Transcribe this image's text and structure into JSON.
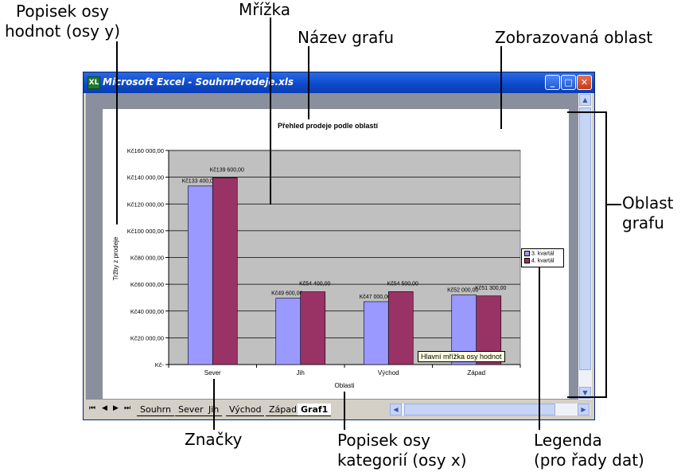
{
  "callouts": {
    "value_axis_label": "Popisek osy\nhodnot (osy y)",
    "gridline": "Mřížka",
    "chart_title": "Název grafu",
    "plot_area": "Zobrazovaná oblast",
    "chart_area": "Oblast\ngrafu",
    "markers": "Značky",
    "category_axis_label": "Popisek osy\nkategorií (osy x)",
    "legend": "Legenda\n(pro řady dat)"
  },
  "window": {
    "title": "Microsoft Excel - SouhrnProdeje.xls",
    "app_icon": "XL",
    "buttons": {
      "minimize": "_",
      "maximize": "□",
      "close": "✕"
    }
  },
  "sheet_nav": [
    "⏮",
    "◀",
    "▶",
    "⏭"
  ],
  "sheet_tabs": [
    "Souhrn",
    "Sever",
    "Jih",
    "Východ",
    "Západ",
    "Graf1"
  ],
  "active_tab": "Graf1",
  "tooltip": "Hlavní mřížka osy hodnot",
  "colors": {
    "series1": "#9999ff",
    "series2": "#993366",
    "plot_bg": "#c0c0c0",
    "titlebar": "#0c48c8"
  },
  "chart_data": {
    "type": "bar",
    "title": "Přehled prodeje podle oblastí",
    "xlabel": "Oblasti",
    "ylabel": "Tržby z prodeje",
    "categories": [
      "Sever",
      "Jih",
      "Východ",
      "Západ"
    ],
    "series": [
      {
        "name": "3. kvartál",
        "values": [
          133400,
          49600,
          47000,
          52000
        ],
        "labels": [
          "Kč133 400,00",
          "Kč49 600,00",
          "Kč47 000,00",
          "Kč52 000,00"
        ]
      },
      {
        "name": "4. kvartál",
        "values": [
          139600,
          54400,
          54500,
          51300
        ],
        "labels": [
          "Kč139 600,00",
          "Kč54 400,00",
          "Kč54 500,00",
          "Kč51 300,00"
        ]
      }
    ],
    "ylim": [
      0,
      160000
    ],
    "yticks": [
      {
        "value": 0,
        "label": "Kč-"
      },
      {
        "value": 20000,
        "label": "Kč20 000,00"
      },
      {
        "value": 40000,
        "label": "Kč40 000,00"
      },
      {
        "value": 60000,
        "label": "Kč60 000,00"
      },
      {
        "value": 80000,
        "label": "Kč80 000,00"
      },
      {
        "value": 100000,
        "label": "Kč100 000,00"
      },
      {
        "value": 120000,
        "label": "Kč120 000,00"
      },
      {
        "value": 140000,
        "label": "Kč140 000,00"
      },
      {
        "value": 160000,
        "label": "Kč160 000,00"
      }
    ],
    "grid": true,
    "legend_position": "right"
  }
}
